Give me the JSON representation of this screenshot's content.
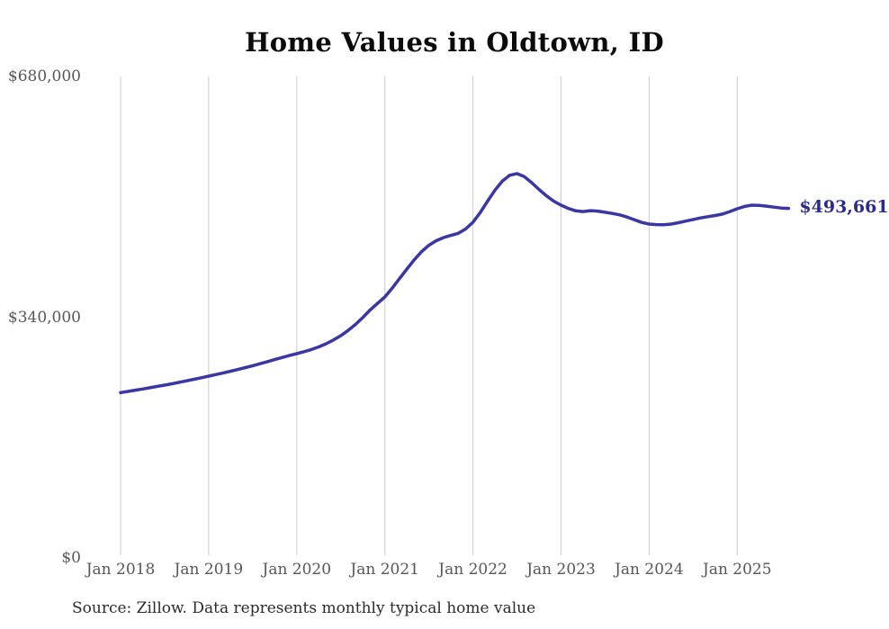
{
  "title": "Home Values in Oldtown, ID",
  "source_note": "Source: Zillow. Data represents monthly typical home value",
  "end_label": "$493,661",
  "colors": {
    "line": "#3a36a3",
    "end_label": "#2b2b8f",
    "grid": "#cbcbcb",
    "axis_text": "#575757",
    "title_text": "#0b0b0b",
    "source_text": "#2b2b2b",
    "background": "#ffffff"
  },
  "chart_data": {
    "type": "line",
    "title": "Home Values in Oldtown, ID",
    "xlabel": "",
    "ylabel": "",
    "ylim": [
      0,
      680000
    ],
    "grid": "vertical-only",
    "legend": "none",
    "y_tick_labels": [
      "$0",
      "$340,000",
      "$680,000"
    ],
    "y_tick_values": [
      0,
      340000,
      680000
    ],
    "x_tick_labels": [
      "Jan 2018",
      "Jan 2019",
      "Jan 2020",
      "Jan 2021",
      "Jan 2022",
      "Jan 2023",
      "Jan 2024",
      "Jan 2025"
    ],
    "x_range": {
      "start": "2018-01",
      "end": "2025-08",
      "interval": "monthly"
    },
    "final_value": 493661,
    "series": [
      {
        "name": "Typical home value",
        "monthly_values": [
          233500,
          235200,
          236900,
          238600,
          240400,
          242200,
          244100,
          246000,
          248100,
          250200,
          252300,
          254500,
          256700,
          259000,
          261300,
          263700,
          266200,
          268800,
          271500,
          274300,
          277200,
          280100,
          283000,
          285800,
          288500,
          291300,
          294400,
          298000,
          302500,
          307800,
          314000,
          321300,
          329800,
          339500,
          350300,
          359500,
          368600,
          381000,
          394500,
          408000,
          421000,
          432500,
          441500,
          448000,
          452500,
          455500,
          458500,
          464500,
          474100,
          488000,
          504000,
          519500,
          532000,
          540500,
          542800,
          538500,
          530000,
          520500,
          511500,
          504000,
          498300,
          493500,
          490200,
          489200,
          490500,
          489800,
          488200,
          486500,
          484500,
          481500,
          477500,
          473800,
          471600,
          470800,
          470500,
          471500,
          473500,
          475800,
          478000,
          480200,
          482000,
          483600,
          485600,
          489200,
          493200,
          496500,
          498300,
          498000,
          496800,
          495500,
          494200,
          493661
        ]
      }
    ]
  }
}
